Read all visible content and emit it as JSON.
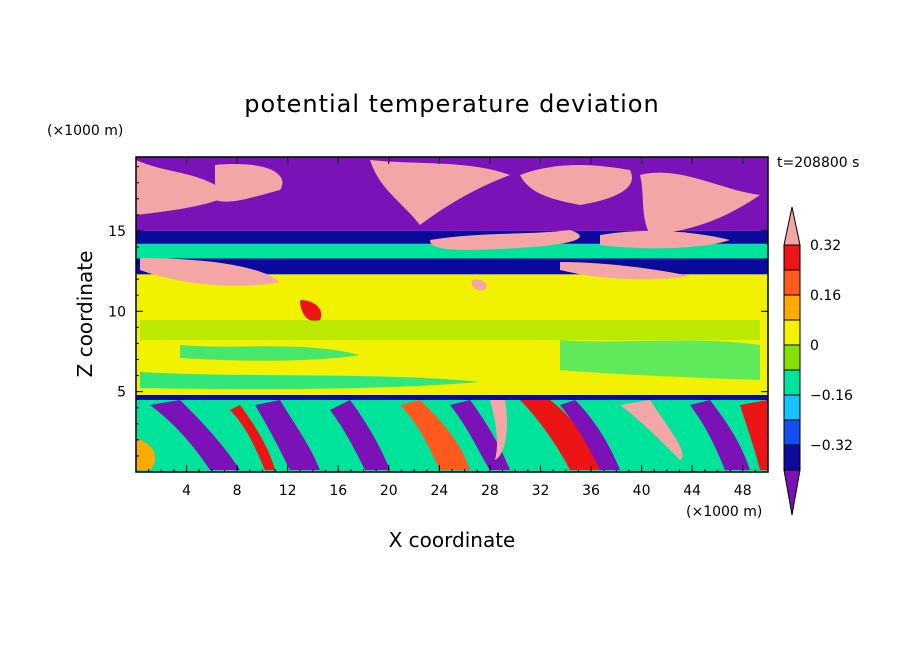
{
  "chart_data": {
    "type": "heatmap",
    "title": "potential temperature deviation",
    "xlabel": "X coordinate",
    "ylabel": "Z coordinate",
    "x_unit": "(×1000 m)",
    "y_unit": "(×1000 m)",
    "time_label": "t=208800 s",
    "xlim": [
      0,
      50
    ],
    "ylim": [
      0,
      19.6
    ],
    "x_ticks": [
      4,
      8,
      12,
      16,
      20,
      24,
      28,
      32,
      36,
      40,
      44,
      48
    ],
    "y_ticks": [
      5,
      10,
      15
    ],
    "colorbar": {
      "levels": [
        -0.4,
        -0.32,
        -0.24,
        -0.16,
        -0.08,
        0,
        0.08,
        0.16,
        0.24,
        0.32,
        0.4
      ],
      "labeled_ticks": [
        {
          "value": -0.32,
          "label": "−0.32"
        },
        {
          "value": -0.16,
          "label": "−0.16"
        },
        {
          "value": 0,
          "label": "0"
        },
        {
          "value": 0.16,
          "label": "0.16"
        },
        {
          "value": 0.32,
          "label": "0.32"
        }
      ],
      "colors": [
        "#7b12b8",
        "#0a0a9c",
        "#1450f0",
        "#16c3ff",
        "#00e39a",
        "#84e000",
        "#f2f200",
        "#ffaa00",
        "#ff5a1e",
        "#ec1414",
        "#f4a6a6"
      ],
      "extend": "both"
    },
    "regions": [
      {
        "x": [
          0,
          50
        ],
        "z": [
          0,
          4.8
        ],
        "value": -0.1
      },
      {
        "x": [
          0,
          50
        ],
        "z": [
          4.8,
          12.3
        ],
        "value": 0.02
      },
      {
        "x": [
          0,
          50
        ],
        "z": [
          12.3,
          13.3
        ],
        "value": -0.35
      },
      {
        "x": [
          0,
          50
        ],
        "z": [
          13.3,
          14.2
        ],
        "value": -0.1
      },
      {
        "x": [
          0,
          50
        ],
        "z": [
          14.2,
          15.0
        ],
        "value": -0.35
      },
      {
        "x": [
          0,
          50
        ],
        "z": [
          15.0,
          19.6
        ],
        "value": -0.45
      }
    ]
  }
}
